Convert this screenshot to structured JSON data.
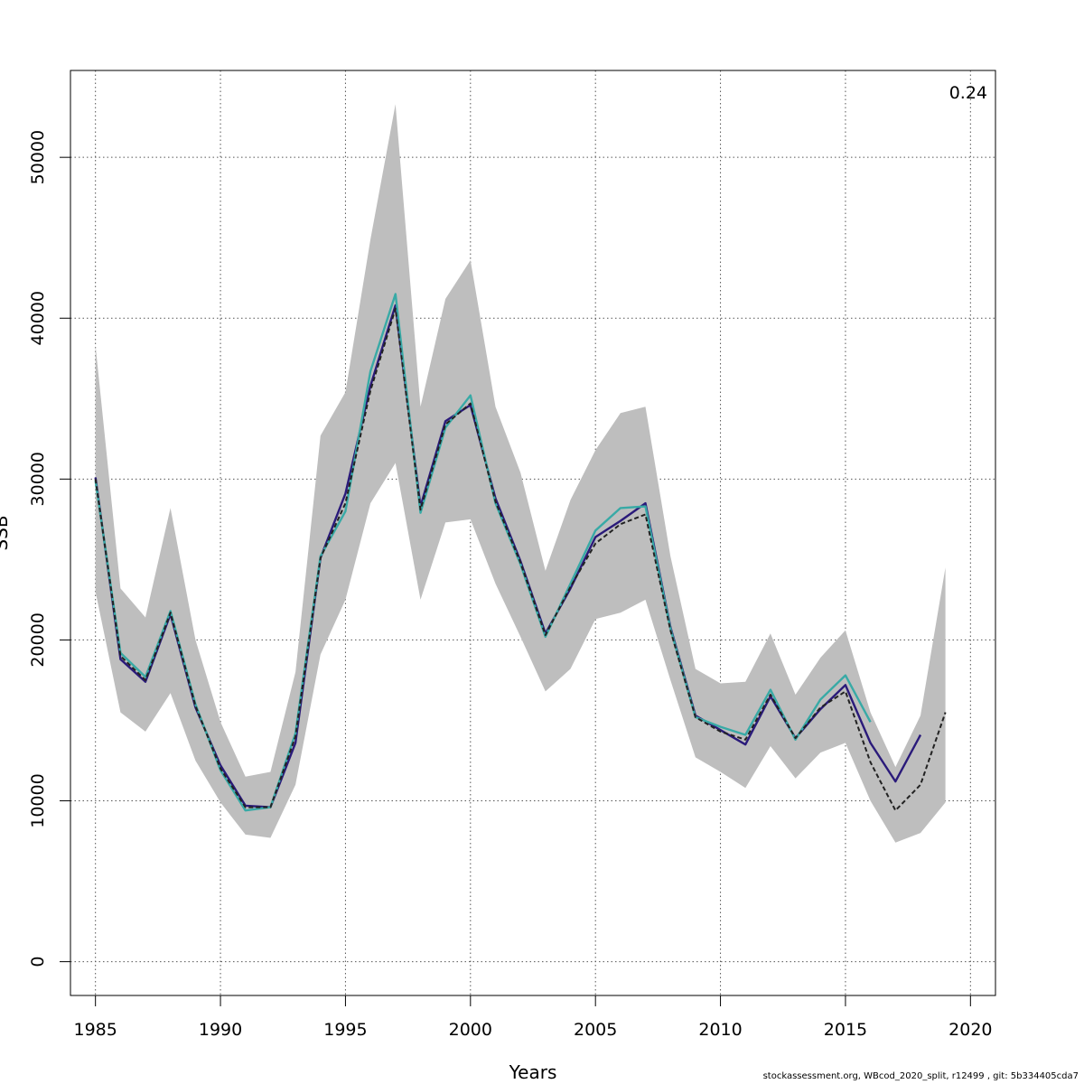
{
  "chart_data": {
    "type": "line",
    "title": "",
    "xlabel": "Years",
    "ylabel": "SSB",
    "annotation": "0.24",
    "xlim": [
      1984,
      2021
    ],
    "ylim": [
      -2100,
      55400
    ],
    "xticks": [
      1985,
      1990,
      1995,
      2000,
      2005,
      2010,
      2015,
      2020
    ],
    "yticks": [
      0,
      10000,
      20000,
      30000,
      40000,
      50000
    ],
    "grid": true,
    "confidence_band": {
      "x": [
        1985,
        1986,
        1987,
        1988,
        1989,
        1990,
        1991,
        1992,
        1993,
        1994,
        1995,
        1996,
        1997,
        1998,
        1999,
        2000,
        2001,
        2002,
        2003,
        2004,
        2005,
        2006,
        2007,
        2008,
        2009,
        2010,
        2011,
        2012,
        2013,
        2014,
        2015,
        2016,
        2017,
        2018,
        2019
      ],
      "lower": [
        23000,
        15500,
        14300,
        16700,
        12500,
        9900,
        7900,
        7700,
        11000,
        19100,
        22500,
        28500,
        31000,
        22500,
        27300,
        27500,
        23500,
        20200,
        16800,
        18200,
        21300,
        21700,
        22500,
        17500,
        12700,
        11800,
        10800,
        13400,
        11400,
        13000,
        13600,
        10000,
        7400,
        8000,
        9900
      ],
      "upper": [
        38300,
        23200,
        21400,
        28200,
        20000,
        14900,
        11500,
        11800,
        18000,
        32700,
        35400,
        44900,
        53300,
        34500,
        41200,
        43600,
        34500,
        30400,
        24300,
        28700,
        31800,
        34100,
        34500,
        25200,
        18200,
        17300,
        17400,
        20400,
        16600,
        18900,
        20600,
        15500,
        12100,
        15300,
        24500
      ]
    },
    "series": [
      {
        "name": "",
        "color": "#2a1a7a",
        "style": "solid",
        "x": [
          1985,
          1986,
          1987,
          1988,
          1989,
          1990,
          1991,
          1992,
          1993,
          1994,
          1995,
          1996,
          1997,
          1998,
          1999,
          2000,
          2001,
          2002,
          2003,
          2004,
          2005,
          2006,
          2007,
          2008,
          2009,
          2010,
          2011,
          2012,
          2013,
          2014,
          2015,
          2016,
          2017,
          2018
        ],
        "y": [
          30100,
          18800,
          17400,
          21600,
          15800,
          12200,
          9700,
          9600,
          13600,
          25100,
          29100,
          35800,
          40800,
          28300,
          33600,
          34600,
          28800,
          24900,
          20400,
          23200,
          26400,
          27400,
          28500,
          20800,
          15300,
          14400,
          13500,
          16500,
          13900,
          15700,
          17200,
          13600,
          11200,
          14100
        ]
      },
      {
        "name": "",
        "color": "#38aaa6",
        "style": "solid",
        "x": [
          1985,
          1986,
          1987,
          1988,
          1989,
          1990,
          1991,
          1992,
          1993,
          1994,
          1995,
          1996,
          1997,
          1998,
          1999,
          2000,
          2001,
          2002,
          2003,
          2004,
          2005,
          2006,
          2007,
          2008,
          2009,
          2010,
          2011,
          2012,
          2013,
          2014,
          2015,
          2016
        ],
        "y": [
          29900,
          19200,
          17700,
          21800,
          16000,
          11900,
          9400,
          9600,
          14200,
          25200,
          28000,
          36700,
          41500,
          27900,
          33200,
          35200,
          28500,
          24700,
          20200,
          23500,
          26800,
          28200,
          28300,
          20700,
          15200,
          14600,
          14100,
          16900,
          13800,
          16300,
          17800,
          14900
        ]
      },
      {
        "name": "",
        "color": "#222222",
        "style": "dashed",
        "x": [
          1985,
          1986,
          1987,
          1988,
          1989,
          1990,
          1991,
          1992,
          1993,
          1994,
          1995,
          1996,
          1997,
          1998,
          1999,
          2000,
          2001,
          2002,
          2003,
          2004,
          2005,
          2006,
          2007,
          2008,
          2009,
          2010,
          2011,
          2012,
          2013,
          2014,
          2015,
          2016,
          2017,
          2018,
          2019
        ],
        "y": [
          30000,
          19000,
          17500,
          21700,
          15900,
          12000,
          9600,
          9600,
          14000,
          25100,
          28500,
          35500,
          40600,
          28100,
          33400,
          34700,
          28600,
          24800,
          20300,
          23300,
          26000,
          27200,
          27800,
          20600,
          15200,
          14300,
          13800,
          16600,
          13900,
          15800,
          16800,
          12400,
          9400,
          11000,
          15500
        ]
      }
    ]
  },
  "footer": {
    "credit": "stockassessment.org, WBcod_2020_split, r12499 , git: 5b334405cda7"
  }
}
